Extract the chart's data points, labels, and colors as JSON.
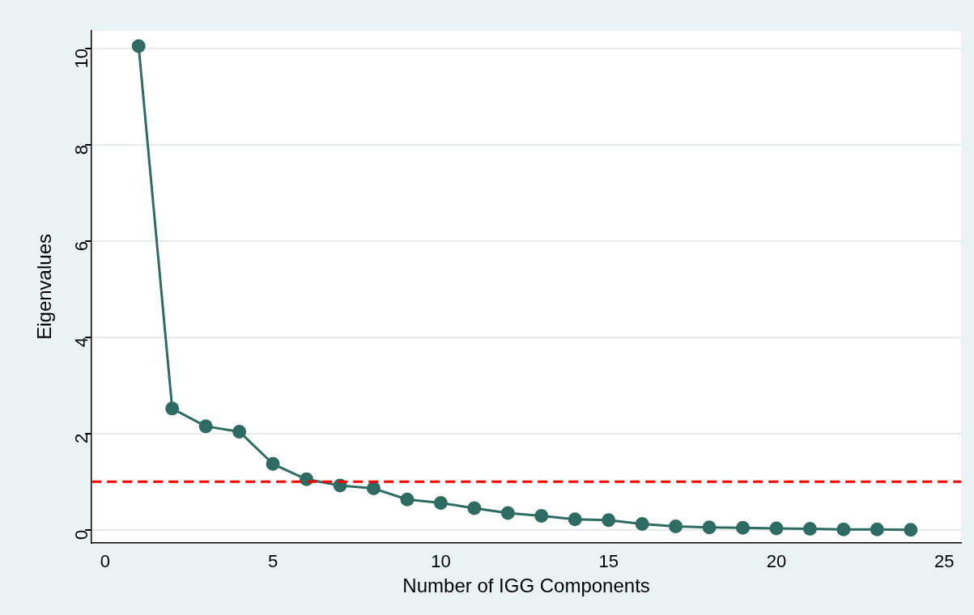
{
  "chart_data": {
    "type": "line",
    "xlabel": "Number of IGG Components",
    "ylabel": "Eigenvalues",
    "x": [
      1,
      2,
      3,
      4,
      5,
      6,
      7,
      8,
      9,
      10,
      11,
      12,
      13,
      14,
      15,
      16,
      17,
      18,
      19,
      20,
      21,
      22,
      23,
      24
    ],
    "series": [
      {
        "color": "#2e6b62",
        "values": [
          10.05,
          2.52,
          2.15,
          2.04,
          1.37,
          1.05,
          0.92,
          0.86,
          0.63,
          0.56,
          0.45,
          0.35,
          0.29,
          0.22,
          0.2,
          0.12,
          0.07,
          0.05,
          0.04,
          0.03,
          0.02,
          0.01,
          0.01,
          0
        ]
      }
    ],
    "xlim": [
      -0.4,
      25.5
    ],
    "xticks": [
      0,
      5,
      10,
      15,
      20,
      25
    ],
    "ylim": [
      -0.27,
      10.37
    ],
    "yticks": [
      0,
      2,
      4,
      6,
      8,
      10
    ],
    "ref_lines": [
      {
        "axis": "y",
        "value": 1,
        "color": "#ff0000",
        "line_style": "dashed"
      }
    ],
    "grid": "y",
    "marker": "circle",
    "line_style": "solid",
    "legend": false
  }
}
